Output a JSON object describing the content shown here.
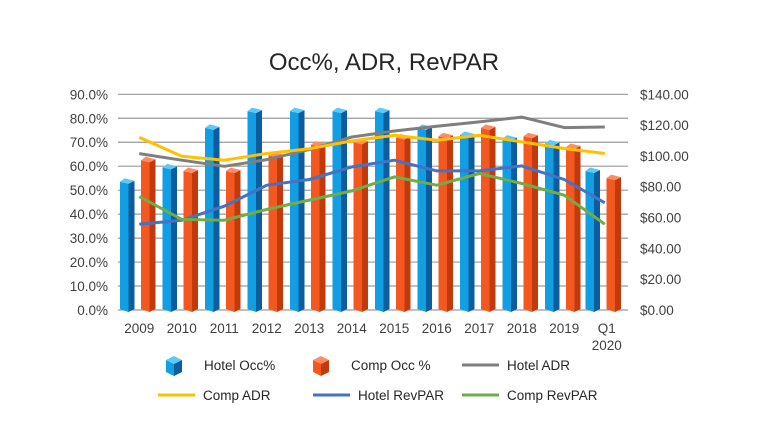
{
  "chart_data": {
    "type": "bar",
    "title": "Occ%, ADR, RevPAR",
    "xlabel": "",
    "ylabel": "",
    "y2label": "",
    "categories": [
      "2009",
      "2010",
      "2011",
      "2012",
      "2013",
      "2014",
      "2015",
      "2016",
      "2017",
      "2018",
      "2019",
      "Q1 2020"
    ],
    "ylim": [
      0,
      90
    ],
    "y2lim": [
      0,
      140
    ],
    "yticks": [
      "0.0%",
      "10.0%",
      "20.0%",
      "30.0%",
      "40.0%",
      "50.0%",
      "60.0%",
      "70.0%",
      "80.0%",
      "90.0%"
    ],
    "y2ticks": [
      "$0.00",
      "$20.00",
      "$40.00",
      "$60.00",
      "$80.00",
      "$100.00",
      "$120.00",
      "$140.00"
    ],
    "grid": true,
    "legend_position": "bottom",
    "series": [
      {
        "name": "Hotel Occ%",
        "type": "bar",
        "axis": "left",
        "color": "#119ee2",
        "side_color": "#0b5d9e",
        "top_color": "#5ccaf5",
        "values": [
          53.5,
          59.5,
          76,
          83,
          83,
          83,
          83,
          76,
          73,
          71.5,
          69.5,
          58
        ]
      },
      {
        "name": "Comp Occ %",
        "type": "bar",
        "axis": "left",
        "color": "#f2581f",
        "side_color": "#c23a0c",
        "top_color": "#ff8c66",
        "values": [
          62.5,
          58,
          58,
          64.5,
          69,
          70,
          72,
          72.5,
          76,
          72.5,
          68,
          55
        ]
      },
      {
        "name": "Hotel ADR",
        "type": "line",
        "axis": "right",
        "color": "#7f7f7f",
        "values": [
          101.5,
          97.2,
          93.3,
          97.6,
          104.1,
          112.3,
          116.2,
          119.3,
          122.1,
          125.2,
          118.4,
          118.8
        ]
      },
      {
        "name": "Comp ADR",
        "type": "line",
        "axis": "right",
        "color": "#ffc000",
        "values": [
          112.0,
          99.8,
          97.2,
          101.6,
          104.7,
          109.7,
          113.4,
          110.2,
          113.4,
          109.1,
          104.8,
          101.6
        ]
      },
      {
        "name": "Hotel RevPAR",
        "type": "line",
        "axis": "right",
        "color": "#4472c4",
        "values": [
          55.7,
          58.3,
          67.4,
          81.0,
          84.7,
          92.9,
          97.2,
          90.3,
          90.3,
          93.5,
          84.7,
          69.6
        ]
      },
      {
        "name": "Comp RevPAR",
        "type": "line",
        "axis": "right",
        "color": "#70ad47",
        "values": [
          73.6,
          58.8,
          58.3,
          65.3,
          71.3,
          77.3,
          86.4,
          81.0,
          88.6,
          82.1,
          74.5,
          55.7
        ]
      }
    ]
  }
}
